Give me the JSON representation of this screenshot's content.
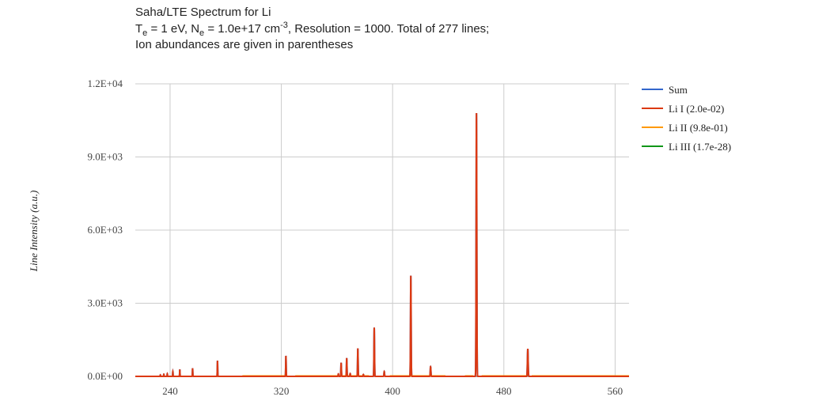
{
  "chart_data": {
    "type": "line",
    "title": {
      "line1": "Saha/LTE Spectrum for Li",
      "te_prefix": "T",
      "te_sub": "e",
      "te_value": " = 1 eV, N",
      "ne_sub": "e",
      "ne_value": " = 1.0e+17 cm",
      "ne_sup": "-3",
      "line2_rest": ", Resolution = 1000. Total of 277 lines;",
      "line3": "Ion abundances are given in parentheses"
    },
    "xlabel": "",
    "ylabel": "Line Intensity (a.u.)",
    "xlim": [
      215,
      570
    ],
    "ylim": [
      0,
      12000
    ],
    "x_ticks": [
      240,
      320,
      400,
      480,
      560
    ],
    "y_ticks": [
      0,
      3000,
      6000,
      9000,
      12000
    ],
    "y_tick_labels": [
      "0.0E+00",
      "3.0E+03",
      "6.0E+03",
      "9.0E+03",
      "1.2E+04"
    ],
    "grid": true,
    "legend_position": "right",
    "series": [
      {
        "name": "Sum",
        "color": "#3366cc"
      },
      {
        "name": "Li I (2.0e-02)",
        "color": "#dc3912"
      },
      {
        "name": "Li II (9.8e-01)",
        "color": "#ff9900"
      },
      {
        "name": "Li III (1.7e-28)",
        "color": "#109618"
      }
    ],
    "peaks": [
      {
        "x": 233.0,
        "y": 60
      },
      {
        "x": 235.5,
        "y": 90
      },
      {
        "x": 238.0,
        "y": 110
      },
      {
        "x": 242.0,
        "y": 200
      },
      {
        "x": 247.0,
        "y": 280
      },
      {
        "x": 256.2,
        "y": 330
      },
      {
        "x": 274.1,
        "y": 640
      },
      {
        "x": 323.3,
        "y": 840
      },
      {
        "x": 361.0,
        "y": 100
      },
      {
        "x": 363.0,
        "y": 560
      },
      {
        "x": 367.0,
        "y": 750
      },
      {
        "x": 369.5,
        "y": 120
      },
      {
        "x": 375.0,
        "y": 1150
      },
      {
        "x": 379.0,
        "y": 80
      },
      {
        "x": 386.8,
        "y": 2000
      },
      {
        "x": 394.0,
        "y": 200
      },
      {
        "x": 413.1,
        "y": 4130
      },
      {
        "x": 427.3,
        "y": 400
      },
      {
        "x": 460.3,
        "y": 10800
      },
      {
        "x": 497.2,
        "y": 1130
      }
    ]
  }
}
